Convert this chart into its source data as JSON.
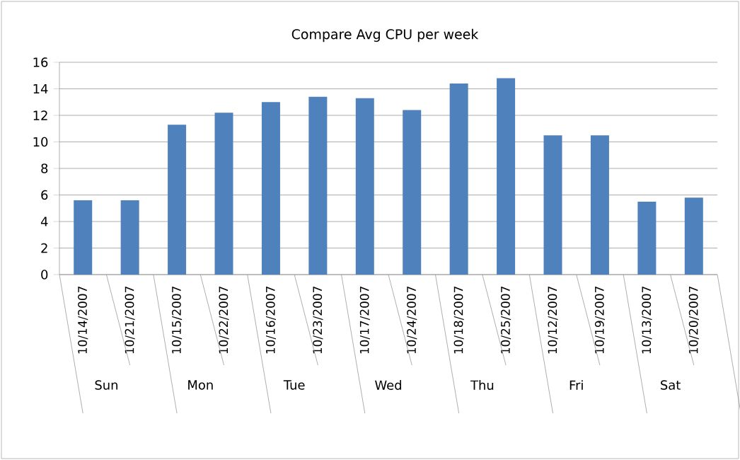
{
  "chart_data": {
    "type": "bar",
    "title": "Compare  Avg CPU  per week",
    "categories": [
      "10/14/2007",
      "10/21/2007",
      "10/15/2007",
      "10/22/2007",
      "10/16/2007",
      "10/23/2007",
      "10/17/2007",
      "10/24/2007",
      "10/18/2007",
      "10/25/2007",
      "10/12/2007",
      "10/19/2007",
      "10/13/2007",
      "10/20/2007"
    ],
    "values": [
      5.6,
      5.6,
      11.3,
      12.2,
      13.0,
      13.4,
      13.3,
      12.4,
      14.4,
      14.8,
      10.5,
      10.5,
      5.5,
      5.8
    ],
    "color": "#4f81bd",
    "ylim": [
      0,
      16
    ],
    "yticks": [
      0,
      2,
      4,
      6,
      8,
      10,
      12,
      14,
      16
    ],
    "grid": "y",
    "annotations": [
      "Sun",
      "Mon",
      "Tue",
      "Wed",
      "Thu",
      "Fri",
      "Sat"
    ]
  }
}
